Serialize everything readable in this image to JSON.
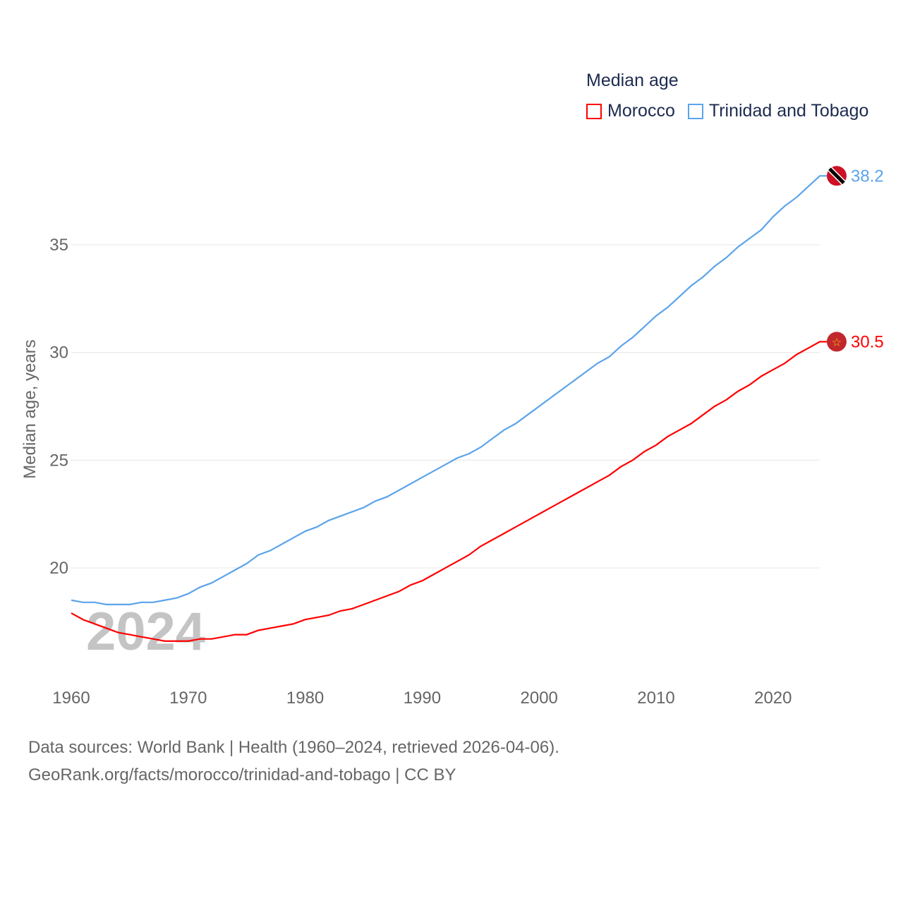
{
  "chart_data": {
    "type": "line",
    "title": "Median age",
    "ylabel": "Median age, years",
    "xlabel": "",
    "xlim": [
      1960,
      2024
    ],
    "ylim": [
      15.5,
      39
    ],
    "x_ticks": [
      1960,
      1970,
      1980,
      1990,
      2000,
      2010,
      2020
    ],
    "y_ticks": [
      20,
      25,
      30,
      35
    ],
    "grid": true,
    "legend_position": "top-right",
    "year_watermark": "2024",
    "series": [
      {
        "name": "Morocco",
        "color": "#ff0000",
        "end_label": "30.5",
        "values": [
          17.9,
          17.6,
          17.4,
          17.2,
          17.0,
          16.9,
          16.8,
          16.7,
          16.6,
          16.6,
          16.6,
          16.7,
          16.7,
          16.8,
          16.9,
          16.9,
          17.1,
          17.2,
          17.3,
          17.4,
          17.6,
          17.7,
          17.8,
          18.0,
          18.1,
          18.3,
          18.5,
          18.7,
          18.9,
          19.2,
          19.4,
          19.7,
          20.0,
          20.3,
          20.6,
          21.0,
          21.3,
          21.6,
          21.9,
          22.2,
          22.5,
          22.8,
          23.1,
          23.4,
          23.7,
          24.0,
          24.3,
          24.7,
          25.0,
          25.4,
          25.7,
          26.1,
          26.4,
          26.7,
          27.1,
          27.5,
          27.8,
          28.2,
          28.5,
          28.9,
          29.2,
          29.5,
          29.9,
          30.2,
          30.5
        ]
      },
      {
        "name": "Trinidad and Tobago",
        "color": "#5ba4ea",
        "end_label": "38.2",
        "values": [
          18.5,
          18.4,
          18.4,
          18.3,
          18.3,
          18.3,
          18.4,
          18.4,
          18.5,
          18.6,
          18.8,
          19.1,
          19.3,
          19.6,
          19.9,
          20.2,
          20.6,
          20.8,
          21.1,
          21.4,
          21.7,
          21.9,
          22.2,
          22.4,
          22.6,
          22.8,
          23.1,
          23.3,
          23.6,
          23.9,
          24.2,
          24.5,
          24.8,
          25.1,
          25.3,
          25.6,
          26.0,
          26.4,
          26.7,
          27.1,
          27.5,
          27.9,
          28.3,
          28.7,
          29.1,
          29.5,
          29.8,
          30.3,
          30.7,
          31.2,
          31.7,
          32.1,
          32.6,
          33.1,
          33.5,
          34.0,
          34.4,
          34.9,
          35.3,
          35.7,
          36.3,
          36.8,
          37.2,
          37.7,
          38.2
        ]
      }
    ]
  },
  "footer": {
    "line1": "Data sources: World Bank | Health (1960–2024, retrieved 2026-04-06).",
    "line2": "GeoRank.org/facts/morocco/trinidad-and-tobago | CC BY"
  }
}
